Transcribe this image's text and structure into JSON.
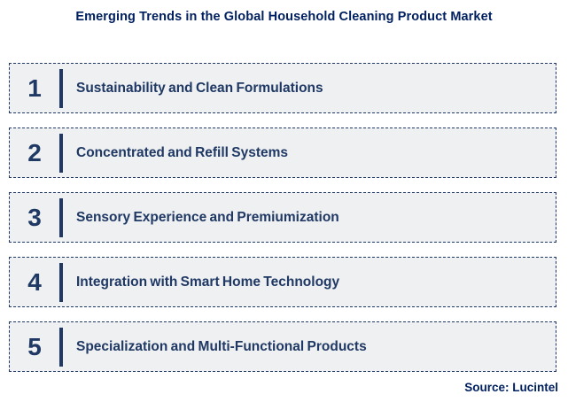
{
  "title": "Emerging Trends in the Global Household Cleaning Product Market",
  "colors": {
    "title_navy": "#002060",
    "row_navy": "#1f3864",
    "row_background": "#eef0f1",
    "page_background": "#ffffff"
  },
  "rows": [
    {
      "number": "1",
      "label": "Sustainability and Clean Formulations"
    },
    {
      "number": "2",
      "label": "Concentrated and Refill Systems"
    },
    {
      "number": "3",
      "label": "Sensory Experience and Premiumization"
    },
    {
      "number": "4",
      "label": "Integration with Smart Home Technology"
    },
    {
      "number": "5",
      "label": "Specialization and Multi-Functional Products"
    }
  ],
  "source": "Source: Lucintel"
}
